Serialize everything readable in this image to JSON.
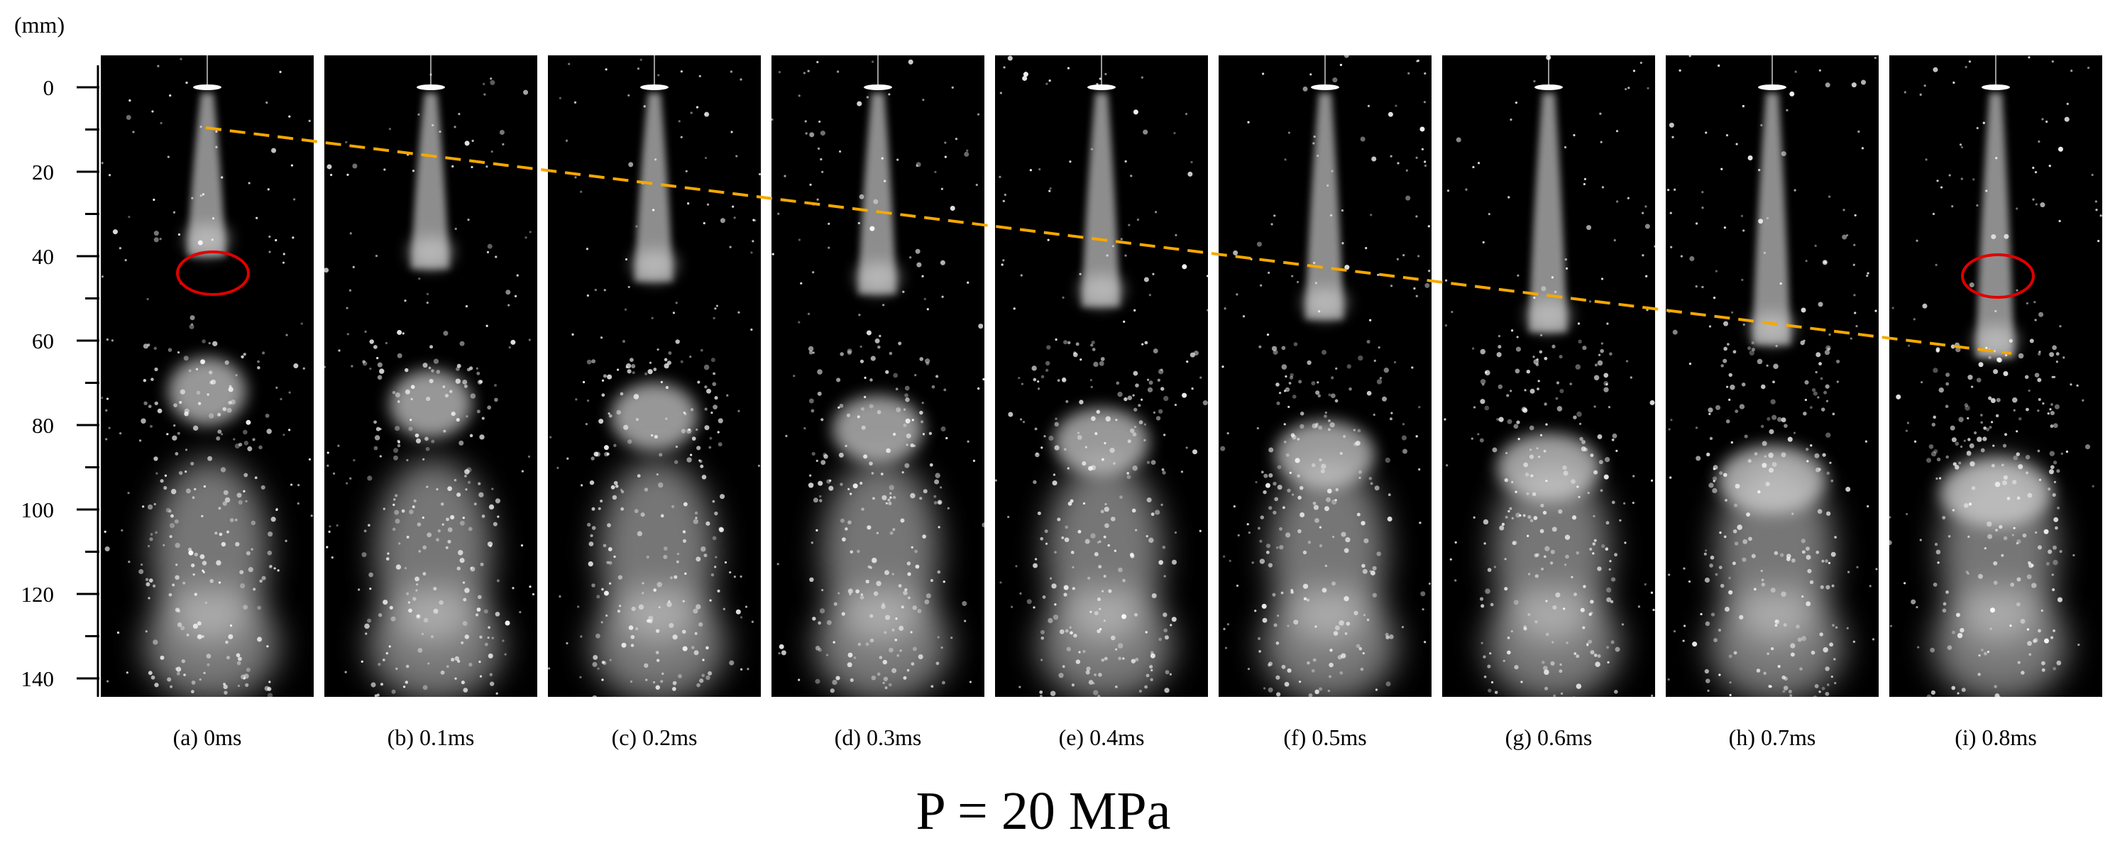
{
  "figure": {
    "unit_label": "(mm)",
    "axis_ticks": [
      "0",
      "20",
      "40",
      "60",
      "80",
      "100",
      "120",
      "140"
    ],
    "frames": [
      {
        "label": "(a) 0ms",
        "time_ms": 0
      },
      {
        "label": "(b) 0.1ms",
        "time_ms": 0.1
      },
      {
        "label": "(c) 0.2ms",
        "time_ms": 0.2
      },
      {
        "label": "(d) 0.3ms",
        "time_ms": 0.3
      },
      {
        "label": "(e) 0.4ms",
        "time_ms": 0.4
      },
      {
        "label": "(f) 0.5ms",
        "time_ms": 0.5
      },
      {
        "label": "(g) 0.6ms",
        "time_ms": 0.6
      },
      {
        "label": "(h) 0.7ms",
        "time_ms": 0.7
      },
      {
        "label": "(i) 0.8ms",
        "time_ms": 0.8
      }
    ],
    "caption": "P = 20 MPa",
    "colors": {
      "frame_bg": "#000000",
      "spray": "#d8d8d8",
      "trend_line": "#f5a800",
      "highlight_circle": "#e00000"
    }
  }
}
